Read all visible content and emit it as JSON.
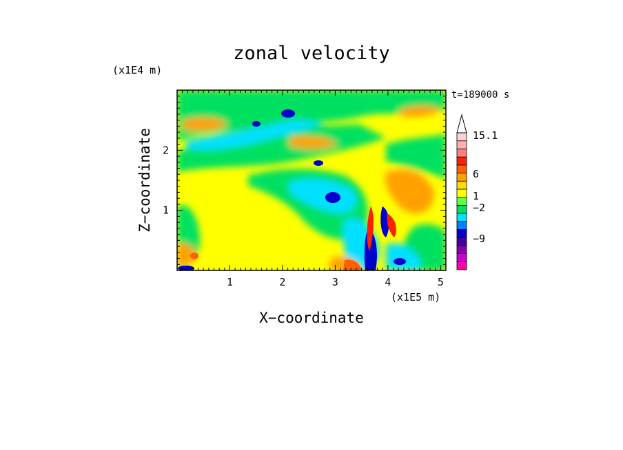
{
  "chart_data": {
    "type": "heatmap",
    "title": "zonal velocity",
    "xlabel": "X−coordinate",
    "ylabel": "Z−coordinate",
    "x_unit": "(x1E5 m)",
    "y_unit": "(x1E4 m)",
    "time_label": "t=189000 s",
    "xlim": [
      0,
      5.1
    ],
    "ylim": [
      0,
      3.0
    ],
    "x_ticks": [
      "1",
      "2",
      "3",
      "4",
      "5"
    ],
    "x_tick_values": [
      1,
      2,
      3,
      4,
      5
    ],
    "y_ticks": [
      "1",
      "2"
    ],
    "y_tick_values": [
      1,
      2
    ],
    "colorbar": {
      "labels": [
        "15.1",
        "6",
        "1",
        "−2",
        "−9"
      ],
      "colors_bottom_to_top": [
        "#ff00aa",
        "#cc00cc",
        "#8800aa",
        "#4000a0",
        "#0000cc",
        "#0080ff",
        "#00e0ff",
        "#00e060",
        "#60ff40",
        "#ffff00",
        "#ffdd00",
        "#ffa000",
        "#ff6000",
        "#ff2000",
        "#ff8080",
        "#ffb0b0",
        "#ffd0d0"
      ],
      "extend_top": true
    },
    "grid": false
  }
}
